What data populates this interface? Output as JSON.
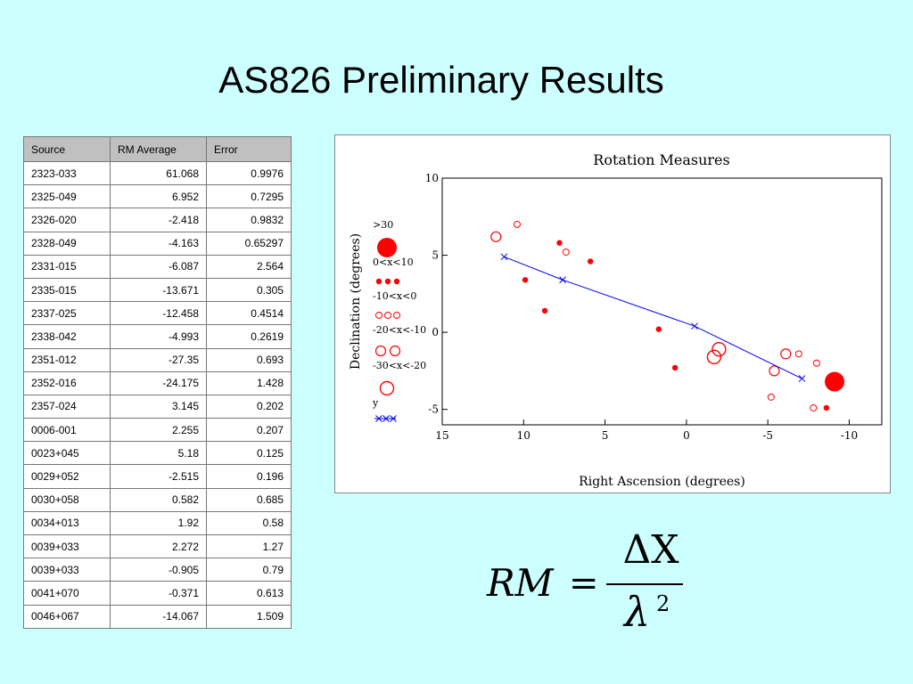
{
  "slide": {
    "title": "AS826 Preliminary Results"
  },
  "table": {
    "headers": [
      "Source",
      "RM Average",
      "Error"
    ],
    "rows": [
      [
        "2323-033",
        "61.068",
        "0.9976"
      ],
      [
        "2325-049",
        "6.952",
        "0.7295"
      ],
      [
        "2326-020",
        "-2.418",
        "0.9832"
      ],
      [
        "2328-049",
        "-4.163",
        "0.65297"
      ],
      [
        "2331-015",
        "-6.087",
        "2.564"
      ],
      [
        "2335-015",
        "-13.671",
        "0.305"
      ],
      [
        "2337-025",
        "-12.458",
        "0.4514"
      ],
      [
        "2338-042",
        "-4.993",
        "0.2619"
      ],
      [
        "2351-012",
        "-27.35",
        "0.693"
      ],
      [
        "2352-016",
        "-24.175",
        "1.428"
      ],
      [
        "2357-024",
        "3.145",
        "0.202"
      ],
      [
        "0006-001",
        "2.255",
        "0.207"
      ],
      [
        "0023+045",
        "5.18",
        "0.125"
      ],
      [
        "0029+052",
        "-2.515",
        "0.196"
      ],
      [
        "0030+058",
        "0.582",
        "0.685"
      ],
      [
        "0034+013",
        "1.92",
        "0.58"
      ],
      [
        "0039+033",
        "2.272",
        "1.27"
      ],
      [
        "0039+033",
        "-0.905",
        "0.79"
      ],
      [
        "0041+070",
        "-0.371",
        "0.613"
      ],
      [
        "0046+067",
        "-14.067",
        "1.509"
      ]
    ]
  },
  "formula": {
    "lhs": "RM",
    "equals": "=",
    "numerator": "ΔX",
    "denominator": "λ",
    "exponent": "2"
  },
  "chart_data": {
    "type": "scatter",
    "title": "Rotation Measures",
    "xlabel": "Right Ascension (degrees)",
    "ylabel": "Declination (degrees)",
    "xlim": [
      15,
      -12
    ],
    "ylim": [
      -6,
      10
    ],
    "xticks": [
      15,
      10,
      5,
      0,
      -5,
      -10
    ],
    "yticks": [
      10,
      5,
      0,
      -5
    ],
    "grid": false,
    "legend_placement": "left",
    "colors": {
      "marker": "#ff0000",
      "line": "#0000ff"
    },
    "series": [
      {
        "name": ">30",
        "style": "filled-large",
        "points": [
          [
            -9.1,
            -3.2
          ]
        ]
      },
      {
        "name": "0<x<10",
        "style": "filled-small",
        "points": [
          [
            7.8,
            5.8
          ],
          [
            5.9,
            4.6
          ],
          [
            9.9,
            3.4
          ],
          [
            8.7,
            1.4
          ],
          [
            1.7,
            0.2
          ],
          [
            0.7,
            -2.3
          ],
          [
            -8.6,
            -4.9
          ]
        ]
      },
      {
        "name": "-10<x<0",
        "style": "open-small",
        "points": [
          [
            10.4,
            7.0
          ],
          [
            7.4,
            5.2
          ],
          [
            -6.9,
            -1.4
          ],
          [
            -8.0,
            -2.0
          ],
          [
            -5.2,
            -4.2
          ],
          [
            -7.8,
            -4.9
          ]
        ]
      },
      {
        "name": "-20<x<-10",
        "style": "open-medium",
        "points": [
          [
            11.7,
            6.2
          ],
          [
            -6.1,
            -1.4
          ],
          [
            -5.4,
            -2.5
          ]
        ]
      },
      {
        "name": "-30<x<-20",
        "style": "open-large",
        "points": [
          [
            -2.0,
            -1.1
          ],
          [
            -1.7,
            -1.6
          ]
        ]
      },
      {
        "name": "y",
        "style": "line-x",
        "points": [
          [
            11.2,
            4.9
          ],
          [
            7.6,
            3.4
          ],
          [
            -0.5,
            0.4
          ],
          [
            -7.1,
            -3.0
          ]
        ]
      }
    ]
  }
}
